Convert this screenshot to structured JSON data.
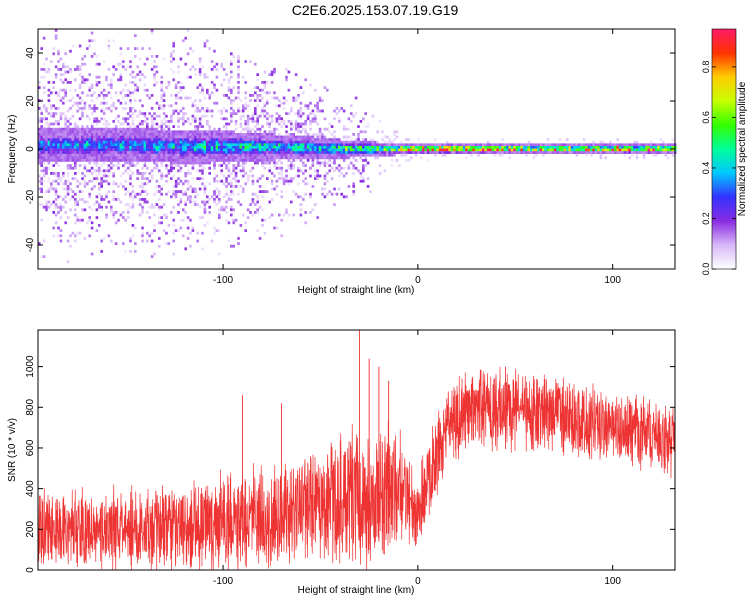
{
  "title": "C2E6.2025.153.07.19.G19",
  "chart_data": [
    {
      "type": "heatmap",
      "title": "C2E6.2025.153.07.19.G19",
      "xlabel": "Height of straight line (km)",
      "ylabel": "Frequency (Hz)",
      "xlim": [
        -195,
        132
      ],
      "ylim": [
        -50,
        50
      ],
      "x_ticks": [
        -100,
        0,
        100
      ],
      "x_tick_labels": [
        "-100",
        "0",
        "100"
      ],
      "y_ticks": [
        -40,
        -20,
        0,
        20,
        40
      ],
      "y_tick_labels": [
        "-40",
        "-20",
        "0",
        "20",
        "40"
      ],
      "colorbar": {
        "label": "Normalized spectral amplitude",
        "range": [
          0,
          0.95
        ],
        "ticks": [
          0.0,
          0.2,
          0.4,
          0.6,
          0.8
        ],
        "tick_labels": [
          "0.0",
          "0.2",
          "0.4",
          "0.6",
          "0.8"
        ],
        "colormap": [
          "#ffffff",
          "#d8b8f8",
          "#8a2be2",
          "#3333ff",
          "#00c8ff",
          "#00ff99",
          "#33ff00",
          "#c8ff00",
          "#ffcc00",
          "#ff3300",
          "#ff1a66"
        ]
      },
      "profile": [
        {
          "x": -195,
          "center_hz": 1.5,
          "core_halfwidth_hz": 7,
          "scatter_halfwidth_hz": 50,
          "peak": 0.35
        },
        {
          "x": -150,
          "center_hz": 1.5,
          "core_halfwidth_hz": 7,
          "scatter_halfwidth_hz": 50,
          "peak": 0.35
        },
        {
          "x": -110,
          "center_hz": 1.0,
          "core_halfwidth_hz": 7,
          "scatter_halfwidth_hz": 50,
          "peak": 0.4
        },
        {
          "x": -90,
          "center_hz": 1.0,
          "core_halfwidth_hz": 6,
          "scatter_halfwidth_hz": 45,
          "peak": 0.45
        },
        {
          "x": -60,
          "center_hz": 0.5,
          "core_halfwidth_hz": 5,
          "scatter_halfwidth_hz": 35,
          "peak": 0.45
        },
        {
          "x": -40,
          "center_hz": 0,
          "core_halfwidth_hz": 4,
          "scatter_halfwidth_hz": 25,
          "peak": 0.5
        },
        {
          "x": -25,
          "center_hz": 0,
          "core_halfwidth_hz": 3,
          "scatter_halfwidth_hz": 20,
          "peak": 0.7
        },
        {
          "x": -10,
          "center_hz": 0,
          "core_halfwidth_hz": 2.5,
          "scatter_halfwidth_hz": 8,
          "peak": 0.6
        },
        {
          "x": 0,
          "center_hz": 0,
          "core_halfwidth_hz": 2,
          "scatter_halfwidth_hz": 6,
          "peak": 0.9
        },
        {
          "x": 20,
          "center_hz": 0,
          "core_halfwidth_hz": 2,
          "scatter_halfwidth_hz": 5,
          "peak": 0.9
        },
        {
          "x": 60,
          "center_hz": 0,
          "core_halfwidth_hz": 2,
          "scatter_halfwidth_hz": 5,
          "peak": 0.8
        },
        {
          "x": 90,
          "center_hz": 0,
          "core_halfwidth_hz": 2,
          "scatter_halfwidth_hz": 5,
          "peak": 0.75
        },
        {
          "x": 105,
          "center_hz": 0,
          "core_halfwidth_hz": 2,
          "scatter_halfwidth_hz": 5,
          "peak": 0.9
        },
        {
          "x": 132,
          "center_hz": 0,
          "core_halfwidth_hz": 2,
          "scatter_halfwidth_hz": 5,
          "peak": 0.7
        }
      ]
    },
    {
      "type": "line",
      "xlabel": "Height of straight line (km)",
      "ylabel": "SNR (10 * v/v)",
      "xlim": [
        -195,
        132
      ],
      "ylim": [
        0,
        1180
      ],
      "x_ticks": [
        -100,
        0,
        100
      ],
      "x_tick_labels": [
        "-100",
        "0",
        "100"
      ],
      "y_ticks": [
        0,
        200,
        400,
        600,
        800,
        1000
      ],
      "y_tick_labels": [
        "0",
        "200",
        "400",
        "600",
        "800",
        "1000"
      ],
      "color": "#ee3333",
      "series": [
        {
          "x": [
            -195,
            -180,
            -160,
            -140,
            -120,
            -100,
            -90,
            -80,
            -70,
            -60,
            -50,
            -40,
            -35,
            -30,
            -25,
            -20,
            -15,
            -10,
            -5,
            0,
            5,
            10,
            15,
            20,
            30,
            40,
            50,
            60,
            70,
            80,
            90,
            100,
            110,
            120,
            132
          ],
          "mean": [
            200,
            200,
            200,
            200,
            210,
            230,
            270,
            270,
            290,
            300,
            320,
            350,
            380,
            360,
            330,
            340,
            380,
            420,
            340,
            300,
            430,
            570,
            680,
            750,
            780,
            800,
            790,
            770,
            760,
            740,
            730,
            710,
            690,
            660,
            650
          ],
          "spread": [
            230,
            220,
            230,
            230,
            240,
            280,
            300,
            290,
            290,
            290,
            310,
            360,
            400,
            390,
            380,
            360,
            360,
            320,
            260,
            250,
            260,
            240,
            240,
            230,
            230,
            230,
            230,
            220,
            220,
            220,
            210,
            210,
            210,
            210,
            200
          ],
          "spikes": [
            {
              "x": -30,
              "y": 1180
            },
            {
              "x": -25,
              "y": 1040
            },
            {
              "x": -20,
              "y": 1000
            },
            {
              "x": -90,
              "y": 860
            },
            {
              "x": -70,
              "y": 820
            },
            {
              "x": -15,
              "y": 930
            },
            {
              "x": 45,
              "y": 1000
            }
          ]
        }
      ]
    }
  ]
}
